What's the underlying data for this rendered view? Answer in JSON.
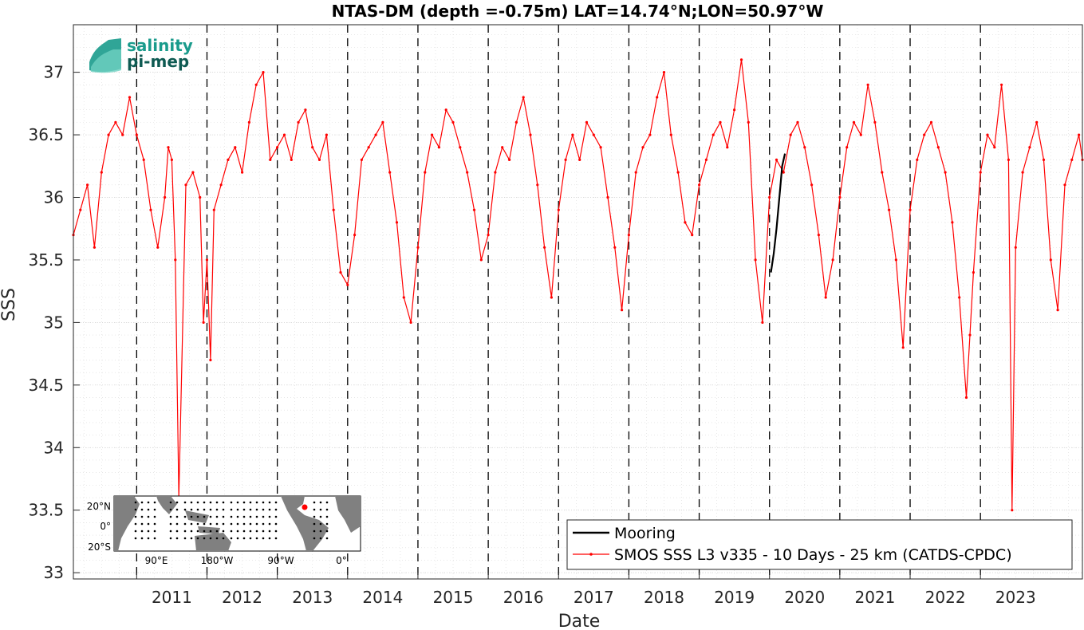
{
  "chart_data": {
    "type": "line",
    "title": "NTAS-DM (depth =-0.75m) LAT=14.74°N;LON=50.97°W",
    "xlabel": "Date",
    "ylabel": "SSS",
    "xlim": [
      2010.1,
      2024.45
    ],
    "ylim": [
      32.95,
      37.38
    ],
    "grid": true,
    "legend": "bottom-right",
    "x_ticks": [
      "2011",
      "2012",
      "2013",
      "2014",
      "2015",
      "2016",
      "2017",
      "2018",
      "2019",
      "2020",
      "2021",
      "2022",
      "2023"
    ],
    "y_ticks": [
      "33",
      "33.5",
      "34",
      "34.5",
      "35",
      "35.5",
      "36",
      "36.5",
      "37"
    ],
    "colors": {
      "smos": "#ff0000",
      "mooring": "#000000",
      "year_lines": "#000000",
      "logo": "#1a9b8c"
    },
    "series": [
      {
        "name": "Mooring",
        "color": "#000000",
        "x": [
          2020.02,
          2020.06,
          2020.1,
          2020.14,
          2020.18,
          2020.22
        ],
        "values": [
          35.4,
          35.55,
          35.75,
          36.0,
          36.25,
          36.35
        ]
      },
      {
        "name": "SMOS SSS L3 v335 - 10 Days - 25 km (CATDS-CPDC)",
        "color": "#ff0000",
        "x": [
          2010.1,
          2010.2,
          2010.3,
          2010.4,
          2010.5,
          2010.6,
          2010.7,
          2010.8,
          2010.9,
          2011.0,
          2011.1,
          2011.2,
          2011.3,
          2011.4,
          2011.45,
          2011.5,
          2011.55,
          2011.6,
          2011.7,
          2011.8,
          2011.9,
          2011.95,
          2012.0,
          2012.05,
          2012.1,
          2012.2,
          2012.3,
          2012.4,
          2012.5,
          2012.6,
          2012.7,
          2012.8,
          2012.9,
          2013.0,
          2013.1,
          2013.2,
          2013.3,
          2013.4,
          2013.5,
          2013.6,
          2013.7,
          2013.8,
          2013.9,
          2014.0,
          2014.1,
          2014.2,
          2014.3,
          2014.4,
          2014.5,
          2014.6,
          2014.7,
          2014.8,
          2014.9,
          2015.0,
          2015.1,
          2015.2,
          2015.3,
          2015.4,
          2015.5,
          2015.6,
          2015.7,
          2015.8,
          2015.9,
          2016.0,
          2016.1,
          2016.2,
          2016.3,
          2016.4,
          2016.5,
          2016.6,
          2016.7,
          2016.8,
          2016.9,
          2017.0,
          2017.1,
          2017.2,
          2017.3,
          2017.4,
          2017.5,
          2017.6,
          2017.7,
          2017.8,
          2017.9,
          2018.0,
          2018.1,
          2018.2,
          2018.3,
          2018.4,
          2018.5,
          2018.6,
          2018.7,
          2018.8,
          2018.9,
          2019.0,
          2019.1,
          2019.2,
          2019.3,
          2019.4,
          2019.5,
          2019.6,
          2019.7,
          2019.8,
          2019.9,
          2020.0,
          2020.1,
          2020.2,
          2020.3,
          2020.4,
          2020.5,
          2020.6,
          2020.7,
          2020.8,
          2020.9,
          2021.0,
          2021.1,
          2021.2,
          2021.3,
          2021.4,
          2021.5,
          2021.6,
          2021.7,
          2021.8,
          2021.9,
          2022.0,
          2022.1,
          2022.2,
          2022.3,
          2022.4,
          2022.5,
          2022.6,
          2022.7,
          2022.8,
          2022.85,
          2022.9,
          2023.0,
          2023.1,
          2023.2,
          2023.3,
          2023.4,
          2023.45,
          2023.5,
          2023.6,
          2023.7,
          2023.8,
          2023.9,
          2024.0,
          2024.1,
          2024.2,
          2024.3,
          2024.4,
          2024.45
        ],
        "values": [
          35.7,
          35.9,
          36.1,
          35.6,
          36.2,
          36.5,
          36.6,
          36.5,
          36.8,
          36.5,
          36.3,
          35.9,
          35.6,
          36.0,
          36.4,
          36.3,
          35.5,
          33.6,
          36.1,
          36.2,
          36.0,
          35.0,
          35.5,
          34.7,
          35.9,
          36.1,
          36.3,
          36.4,
          36.2,
          36.6,
          36.9,
          37.0,
          36.3,
          36.4,
          36.5,
          36.3,
          36.6,
          36.7,
          36.4,
          36.3,
          36.5,
          35.9,
          35.4,
          35.3,
          35.7,
          36.3,
          36.4,
          36.5,
          36.6,
          36.2,
          35.8,
          35.2,
          35.0,
          35.6,
          36.2,
          36.5,
          36.4,
          36.7,
          36.6,
          36.4,
          36.2,
          35.9,
          35.5,
          35.7,
          36.2,
          36.4,
          36.3,
          36.6,
          36.8,
          36.5,
          36.1,
          35.6,
          35.2,
          35.9,
          36.3,
          36.5,
          36.3,
          36.6,
          36.5,
          36.4,
          36.0,
          35.6,
          35.1,
          35.7,
          36.2,
          36.4,
          36.5,
          36.8,
          37.0,
          36.5,
          36.2,
          35.8,
          35.7,
          36.1,
          36.3,
          36.5,
          36.6,
          36.4,
          36.7,
          37.1,
          36.6,
          35.5,
          35.0,
          36.0,
          36.3,
          36.2,
          36.5,
          36.6,
          36.4,
          36.1,
          35.7,
          35.2,
          35.5,
          36.0,
          36.4,
          36.6,
          36.5,
          36.9,
          36.6,
          36.2,
          35.9,
          35.5,
          34.8,
          35.9,
          36.3,
          36.5,
          36.6,
          36.4,
          36.2,
          35.8,
          35.2,
          34.4,
          34.9,
          35.4,
          36.2,
          36.5,
          36.4,
          36.9,
          36.3,
          33.5,
          35.6,
          36.2,
          36.4,
          36.6,
          36.3,
          35.5,
          35.1,
          36.1,
          36.3,
          36.5,
          36.3
        ]
      }
    ]
  },
  "legend": {
    "items": [
      "Mooring",
      "SMOS SSS L3 v335 - 10 Days - 25 km (CATDS-CPDC)"
    ]
  },
  "logo": {
    "line1": "salinity",
    "line2": "pi-mep"
  },
  "inset_map": {
    "lat_labels": [
      "20°N",
      "0°",
      "20°S"
    ],
    "lon_labels": [
      "90°E",
      "180°W",
      "90°W",
      "0°"
    ],
    "marker_color": "#ff0000"
  }
}
